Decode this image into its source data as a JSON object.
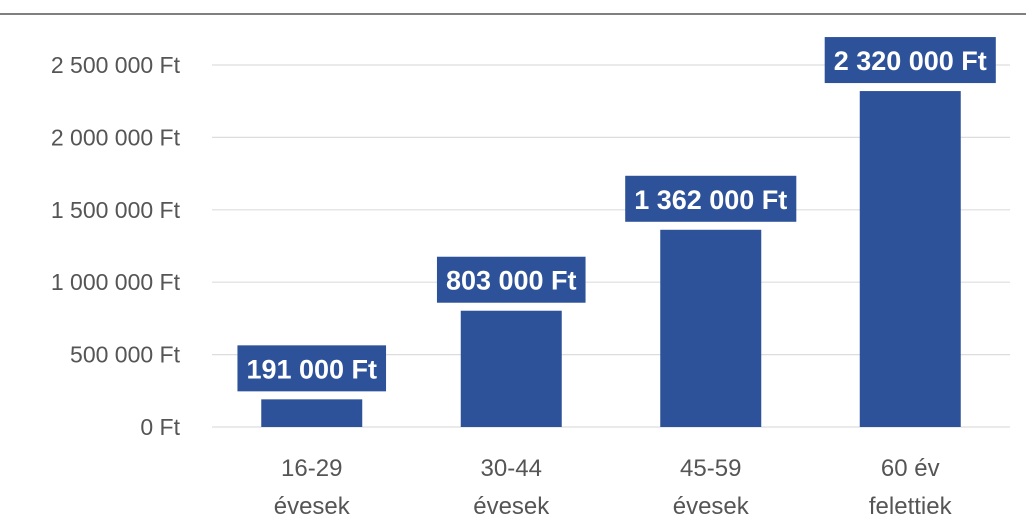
{
  "chart_data": {
    "type": "bar",
    "categories": [
      [
        "16-29",
        "évesek"
      ],
      [
        "30-44",
        "évesek"
      ],
      [
        "45-59",
        "évesek"
      ],
      [
        "60 év",
        "felettiek"
      ]
    ],
    "values": [
      191000,
      803000,
      1362000,
      2320000
    ],
    "data_labels": [
      "191 000 Ft",
      "803 000 Ft",
      "1 362 000 Ft",
      "2 320 000 Ft"
    ],
    "y_ticks": [
      0,
      500000,
      1000000,
      1500000,
      2000000,
      2500000
    ],
    "y_tick_labels": [
      "0 Ft",
      "500 000 Ft",
      "1 000 000 Ft",
      "1 500 000 Ft",
      "2 000 000 Ft",
      "2 500 000 Ft"
    ],
    "ylim": [
      0,
      2500000
    ],
    "title": "",
    "xlabel": "",
    "ylabel": "",
    "grid": true,
    "legend": false,
    "colors": {
      "bar": "#2d5299",
      "label_bg": "#2d5299",
      "label_text": "#ffffff",
      "grid": "#dddddd",
      "axis_text": "#555555",
      "top_border": "#555555"
    }
  }
}
